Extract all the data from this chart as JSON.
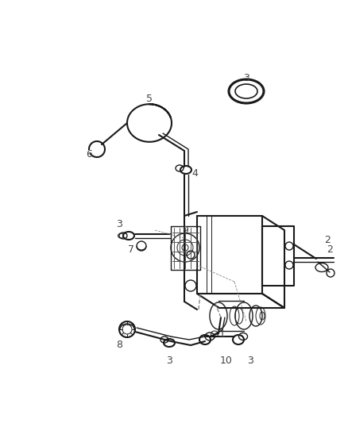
{
  "background_color": "#ffffff",
  "line_color": "#1a1a1a",
  "label_color": "#444444",
  "fig_width": 4.38,
  "fig_height": 5.33,
  "dpi": 100
}
